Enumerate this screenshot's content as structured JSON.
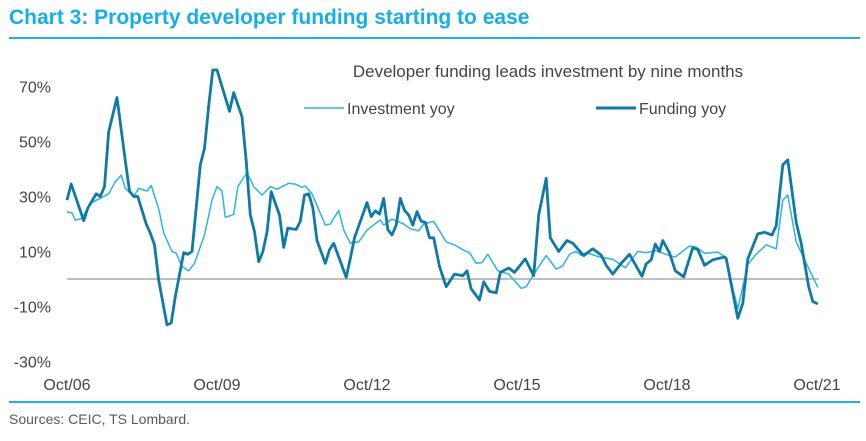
{
  "title": "Chart 3: Property developer funding starting to ease",
  "source": "Sources: CEIC, TS Lombard.",
  "colors": {
    "title": "#14aee9",
    "investment": "#2bb4e6",
    "funding": "#0e7aa5",
    "zero_line": "#999999"
  },
  "chart_data": {
    "type": "line",
    "title": "Developer funding leads investment by nine months",
    "xlabel": "",
    "ylabel": "",
    "x_unit": "months since Oct/06",
    "xlim": [
      0,
      180
    ],
    "ylim": [
      -30,
      77
    ],
    "yticks": [
      70,
      50,
      30,
      10,
      -10,
      -30
    ],
    "ytick_labels": [
      "70%",
      "50%",
      "30%",
      "10%",
      "-10%",
      "-30%"
    ],
    "xticks": [
      0,
      36,
      72,
      108,
      144,
      180
    ],
    "xtick_labels": [
      "Oct/06",
      "Oct/09",
      "Oct/12",
      "Oct/15",
      "Oct/18",
      "Oct/21"
    ],
    "grid": false,
    "legend_position": "top",
    "series": [
      {
        "name": "Investment yoy",
        "color": "#2bb4e6",
        "points": [
          [
            0,
            24.5
          ],
          [
            1.2,
            24
          ],
          [
            2,
            21.4
          ],
          [
            3.6,
            22
          ],
          [
            5.6,
            27.5
          ],
          [
            10,
            31
          ],
          [
            11.6,
            35.4
          ],
          [
            13,
            37.8
          ],
          [
            14,
            33
          ],
          [
            16,
            30
          ],
          [
            17.2,
            33
          ],
          [
            19.2,
            32
          ],
          [
            20.2,
            34
          ],
          [
            22,
            25.5
          ],
          [
            23.2,
            16.7
          ],
          [
            25.2,
            10
          ],
          [
            26.2,
            9.4
          ],
          [
            27.6,
            4.5
          ],
          [
            29.2,
            3
          ],
          [
            30.6,
            5.7
          ],
          [
            33,
            16
          ],
          [
            34.8,
            28.7
          ],
          [
            36,
            33.6
          ],
          [
            37.2,
            32
          ],
          [
            38,
            22.4
          ],
          [
            40,
            23.5
          ],
          [
            41,
            33.6
          ],
          [
            43.2,
            38.7
          ],
          [
            44.8,
            33.6
          ],
          [
            46.8,
            30.5
          ],
          [
            48.8,
            33.6
          ],
          [
            50.4,
            32.6
          ],
          [
            53.2,
            34.8
          ],
          [
            54.8,
            34.5
          ],
          [
            56.4,
            33.3
          ],
          [
            57.2,
            33.8
          ],
          [
            58.8,
            31
          ],
          [
            62,
            19.6
          ],
          [
            63.2,
            20
          ],
          [
            65.2,
            25
          ],
          [
            66.4,
            17.8
          ],
          [
            68,
            13
          ],
          [
            70,
            13.5
          ],
          [
            72,
            17.8
          ],
          [
            73,
            19
          ],
          [
            75.2,
            21.5
          ],
          [
            76,
            19.6
          ],
          [
            78,
            21.8
          ],
          [
            80.8,
            20
          ],
          [
            82.4,
            18.3
          ],
          [
            84.4,
            17.5
          ],
          [
            85.6,
            20
          ],
          [
            88,
            21
          ],
          [
            91,
            13.5
          ],
          [
            93,
            12.4
          ],
          [
            95.4,
            10.3
          ],
          [
            96.6,
            9.6
          ],
          [
            98.2,
            5.7
          ],
          [
            99.6,
            6
          ],
          [
            101,
            9
          ],
          [
            103.4,
            3
          ],
          [
            106,
            1.8
          ],
          [
            109,
            -3.4
          ],
          [
            110.2,
            -2.8
          ],
          [
            111.8,
            1.2
          ],
          [
            115,
            8.5
          ],
          [
            117.4,
            3.6
          ],
          [
            119,
            4.8
          ],
          [
            120.6,
            9
          ],
          [
            122.2,
            10
          ],
          [
            123.4,
            8.5
          ],
          [
            124.6,
            9.6
          ],
          [
            127.8,
            8
          ],
          [
            131,
            7.2
          ],
          [
            134,
            4.1
          ],
          [
            137,
            10
          ],
          [
            139,
            9.6
          ],
          [
            141.4,
            10.3
          ],
          [
            144.6,
            8.5
          ],
          [
            146,
            8
          ],
          [
            149.4,
            12
          ],
          [
            151,
            11.6
          ],
          [
            153,
            9.4
          ],
          [
            156.2,
            9.8
          ],
          [
            158,
            8
          ],
          [
            161,
            -10.8
          ],
          [
            163.4,
            5.3
          ],
          [
            165.4,
            9
          ],
          [
            167.8,
            12.4
          ],
          [
            170.2,
            11
          ],
          [
            171.8,
            28.7
          ],
          [
            173,
            30.5
          ],
          [
            175,
            13.5
          ],
          [
            177.4,
            5.7
          ],
          [
            180.2,
            -3
          ]
        ]
      },
      {
        "name": "Funding yoy",
        "color": "#0e7aa5",
        "points": [
          [
            0,
            28.7
          ],
          [
            1,
            34.5
          ],
          [
            4,
            21.2
          ],
          [
            5,
            25.8
          ],
          [
            7,
            31
          ],
          [
            8,
            30
          ],
          [
            9,
            33.6
          ],
          [
            10,
            53.6
          ],
          [
            12,
            66
          ],
          [
            14,
            43
          ],
          [
            15,
            32
          ],
          [
            16,
            30
          ],
          [
            17,
            30
          ],
          [
            19,
            20
          ],
          [
            20,
            16.7
          ],
          [
            21,
            12.4
          ],
          [
            22,
            -0.4
          ],
          [
            24,
            -16.7
          ],
          [
            25,
            -16
          ],
          [
            26,
            -6.4
          ],
          [
            28,
            9.6
          ],
          [
            29,
            9
          ],
          [
            30,
            10
          ],
          [
            32,
            41.5
          ],
          [
            33,
            47.5
          ],
          [
            34,
            63
          ],
          [
            35,
            76
          ],
          [
            36,
            76
          ],
          [
            39,
            61
          ],
          [
            40,
            67.8
          ],
          [
            42,
            59
          ],
          [
            43,
            43
          ],
          [
            44,
            23.3
          ],
          [
            45,
            17.2
          ],
          [
            46,
            6.3
          ],
          [
            47,
            9.9
          ],
          [
            48,
            17
          ],
          [
            49,
            31.8
          ],
          [
            51,
            23.3
          ],
          [
            52,
            11.5
          ],
          [
            53,
            18.5
          ],
          [
            55,
            18
          ],
          [
            56,
            21
          ],
          [
            57,
            30.5
          ],
          [
            58,
            31
          ],
          [
            59,
            26
          ],
          [
            60,
            14
          ],
          [
            62,
            5.7
          ],
          [
            63,
            10.6
          ],
          [
            64,
            13
          ],
          [
            67,
            0.6
          ],
          [
            68,
            7.5
          ],
          [
            69,
            15
          ],
          [
            72,
            27.8
          ],
          [
            73,
            22.7
          ],
          [
            74,
            24.8
          ],
          [
            75,
            23.6
          ],
          [
            76,
            29.3
          ],
          [
            77,
            18
          ],
          [
            78,
            16
          ],
          [
            79,
            19.6
          ],
          [
            80,
            29.3
          ],
          [
            81,
            25
          ],
          [
            82,
            23.3
          ],
          [
            83,
            19.6
          ],
          [
            84,
            24.5
          ],
          [
            85,
            21
          ],
          [
            86,
            20.6
          ],
          [
            87,
            15
          ],
          [
            88,
            15
          ],
          [
            89.4,
            4.5
          ],
          [
            91,
            -2.8
          ],
          [
            93,
            1.8
          ],
          [
            95,
            1.2
          ],
          [
            96,
            3
          ],
          [
            97,
            -3.6
          ],
          [
            99,
            -7.6
          ],
          [
            100,
            -1
          ],
          [
            101.4,
            -4.5
          ],
          [
            103,
            -5
          ],
          [
            104,
            2.4
          ],
          [
            106,
            4
          ],
          [
            107.4,
            2.4
          ],
          [
            110,
            7.3
          ],
          [
            112,
            1.2
          ],
          [
            113.2,
            23.3
          ],
          [
            115,
            36.6
          ],
          [
            116,
            15
          ],
          [
            118,
            10
          ],
          [
            120,
            14
          ],
          [
            121.4,
            13
          ],
          [
            124,
            8.5
          ],
          [
            126.2,
            11
          ],
          [
            128.2,
            8.7
          ],
          [
            129.4,
            5
          ],
          [
            131,
            1.8
          ],
          [
            133,
            5.7
          ],
          [
            135,
            9
          ],
          [
            138,
            1
          ],
          [
            139,
            5.5
          ],
          [
            140.2,
            7
          ],
          [
            141.2,
            12.7
          ],
          [
            142.2,
            10
          ],
          [
            143,
            14
          ],
          [
            144.6,
            9.5
          ],
          [
            146,
            3
          ],
          [
            148,
            0.8
          ],
          [
            150.2,
            11.4
          ],
          [
            151.4,
            10.7
          ],
          [
            153,
            5
          ],
          [
            155,
            7
          ],
          [
            157.8,
            8
          ],
          [
            158.2,
            7.5
          ],
          [
            161,
            -14.3
          ],
          [
            162.2,
            -8.8
          ],
          [
            163.4,
            7.3
          ],
          [
            165.8,
            16.4
          ],
          [
            167.4,
            17
          ],
          [
            169.2,
            16
          ],
          [
            170.2,
            19.4
          ],
          [
            171.8,
            41.5
          ],
          [
            173,
            43.3
          ],
          [
            175,
            20.6
          ],
          [
            176.2,
            13
          ],
          [
            178,
            -2.8
          ],
          [
            179,
            -8.2
          ],
          [
            180.2,
            -9
          ]
        ]
      }
    ]
  }
}
